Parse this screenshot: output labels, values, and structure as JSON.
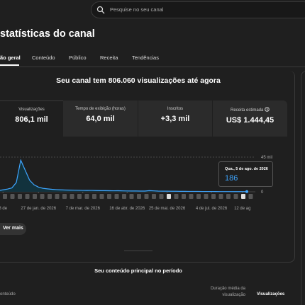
{
  "search": {
    "placeholder": "Pesquise no seu canal"
  },
  "header": {
    "title": "statísticas do canal"
  },
  "tabs": [
    "ão geral",
    "Conteúdo",
    "Público",
    "Receita",
    "Tendências"
  ],
  "summary": {
    "heading": "Seu canal tem 806.060 visualizações até agora"
  },
  "metrics": [
    {
      "label": "Visualizações",
      "value": "806,1 mil"
    },
    {
      "label": "Tempo de exibição (horas)",
      "value": "64,0 mil"
    },
    {
      "label": "Inscritos",
      "value": "+3,3 mil"
    },
    {
      "label": "Receita estimada",
      "value": "US$ 1.444,45"
    }
  ],
  "chart_data": {
    "type": "area",
    "categories": [
      null,
      null,
      null,
      null,
      null,
      null,
      null,
      null,
      null,
      null,
      null,
      null,
      null,
      null,
      null,
      null,
      null,
      null,
      null,
      null,
      null,
      null,
      null,
      null,
      null,
      null,
      null,
      null,
      null,
      null,
      null,
      null,
      null,
      null,
      null,
      null,
      null,
      null,
      null,
      null,
      null,
      null,
      null,
      null,
      null,
      null,
      null,
      null,
      null,
      null,
      null,
      null,
      null,
      null,
      null,
      null,
      null
    ],
    "series": [
      {
        "name": "Visualizações",
        "color": "#3ea6ff",
        "values": [
          1500,
          2500,
          3500,
          5000,
          12000,
          41000,
          28000,
          15000,
          9000,
          6000,
          4500,
          3800,
          3200,
          2800,
          2500,
          2300,
          2200,
          2000,
          1900,
          1800,
          1700,
          1800,
          1600,
          1500,
          1500,
          1400,
          1300,
          1400,
          1200,
          1100,
          1000,
          1000,
          900,
          900,
          1500,
          1200,
          900,
          800,
          800,
          700,
          700,
          600,
          600,
          500,
          500,
          500,
          400,
          400,
          400,
          350,
          300,
          300,
          300,
          250,
          250,
          200,
          186
        ]
      }
    ],
    "ylim": [
      0,
      45000
    ],
    "yticks": [
      {
        "value": 0,
        "label": "0"
      },
      {
        "value": 45000,
        "label": "45 mil"
      }
    ],
    "xticks": [
      {
        "value": 1,
        "label": "8 de"
      },
      {
        "value": 9,
        "label": "27 de jan. de 2026"
      },
      {
        "value": 19,
        "label": "7 de mar. de 2026"
      },
      {
        "value": 29,
        "label": "16 de abr. de 2026"
      },
      {
        "value": 38,
        "label": "25 de mai. de 2026"
      },
      {
        "value": 48,
        "label": "4 de jul. de 2026"
      },
      {
        "value": 55,
        "label": "12 de ag"
      }
    ],
    "tooltip": {
      "date": "Qua., 5 de ago. de 2026"
    }
  },
  "more_button": "Ver mais",
  "top_content": {
    "heading": "Seu conteúdo principal no período",
    "columns": [
      "onteúdo",
      "Duração média da visualização",
      "Visualizações"
    ]
  }
}
